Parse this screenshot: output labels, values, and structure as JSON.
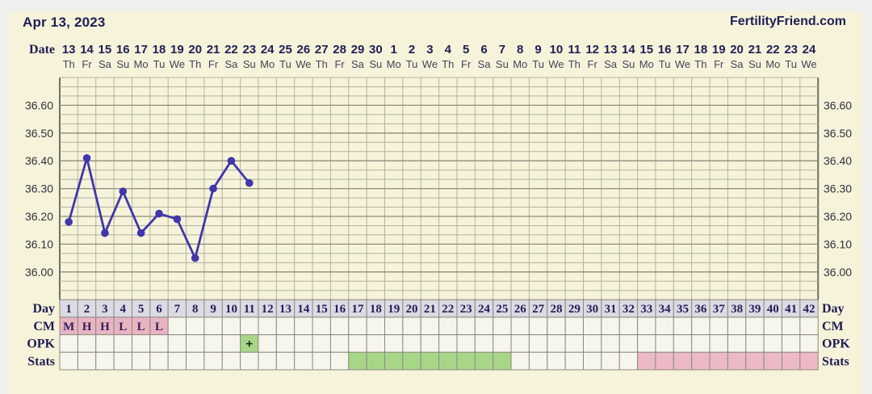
{
  "header": {
    "date": "Apr 13, 2023",
    "brand": "FertilityFriend.com"
  },
  "chart_data": {
    "type": "line",
    "unit": "celsius",
    "y_axis": {
      "tick_labels": [
        "36.60",
        "36.50",
        "36.40",
        "36.30",
        "36.20",
        "36.10",
        "36.00"
      ],
      "view_max": 36.7,
      "view_min": 35.9,
      "minor_divisions_per_tick": 3,
      "grid": "on",
      "labels_on_both_sides": true
    },
    "x_axis": {
      "date_label": "Date",
      "dates": [
        "13",
        "14",
        "15",
        "16",
        "17",
        "18",
        "19",
        "20",
        "21",
        "22",
        "23",
        "24",
        "25",
        "26",
        "27",
        "28",
        "29",
        "30",
        "1",
        "2",
        "3",
        "4",
        "5",
        "6",
        "7",
        "8",
        "9",
        "10",
        "11",
        "12",
        "13",
        "14",
        "15",
        "16",
        "17",
        "18",
        "19",
        "20",
        "21",
        "22",
        "23",
        "24"
      ],
      "weekdays": [
        "Th",
        "Fr",
        "Sa",
        "Su",
        "Mo",
        "Tu",
        "We",
        "Th",
        "Fr",
        "Sa",
        "Su",
        "Mo",
        "Tu",
        "We",
        "Th",
        "Fr",
        "Sa",
        "Su",
        "Mo",
        "Tu",
        "We",
        "Th",
        "Fr",
        "Sa",
        "Su",
        "Mo",
        "Tu",
        "We",
        "Th",
        "Fr",
        "Sa",
        "Su",
        "Mo",
        "Tu",
        "We",
        "Th",
        "Fr",
        "Sa",
        "Su",
        "Mo",
        "Tu",
        "We"
      ]
    },
    "temperatures": {
      "by_cycle_day": [
        36.18,
        36.41,
        36.14,
        36.29,
        36.14,
        36.21,
        36.19,
        36.05,
        36.3,
        36.4,
        36.32
      ]
    },
    "table_rows": {
      "day": {
        "label": "Day",
        "values": [
          1,
          2,
          3,
          4,
          5,
          6,
          7,
          8,
          9,
          10,
          11,
          12,
          13,
          14,
          15,
          16,
          17,
          18,
          19,
          20,
          21,
          22,
          23,
          24,
          25,
          26,
          27,
          28,
          29,
          30,
          31,
          32,
          33,
          34,
          35,
          36,
          37,
          38,
          39,
          40,
          41,
          42
        ]
      },
      "cm": {
        "label": "CM",
        "entries": {
          "1": "M",
          "2": "H",
          "3": "H",
          "4": "L",
          "5": "L",
          "6": "L"
        }
      },
      "opk": {
        "label": "OPK",
        "entries": {
          "11": "+"
        }
      },
      "stats": {
        "label": "Stats",
        "green_days": [
          17,
          18,
          19,
          20,
          21,
          22,
          23,
          24,
          25
        ],
        "pink_days": [
          33,
          34,
          35,
          36,
          37,
          38,
          39,
          40,
          41,
          42
        ]
      }
    },
    "colors": {
      "temp_line": "#4136ab",
      "day_row_bg": "#dcdbe4",
      "cm_pink": "#e9b4c1",
      "opk_green": "#a8d687",
      "stats_green": "#a8d687",
      "stats_pink": "#ecb9c5",
      "cell_bg": "#f7f6ec",
      "panel_bg": "#f6f3da",
      "navy_text": "#201e55"
    }
  }
}
